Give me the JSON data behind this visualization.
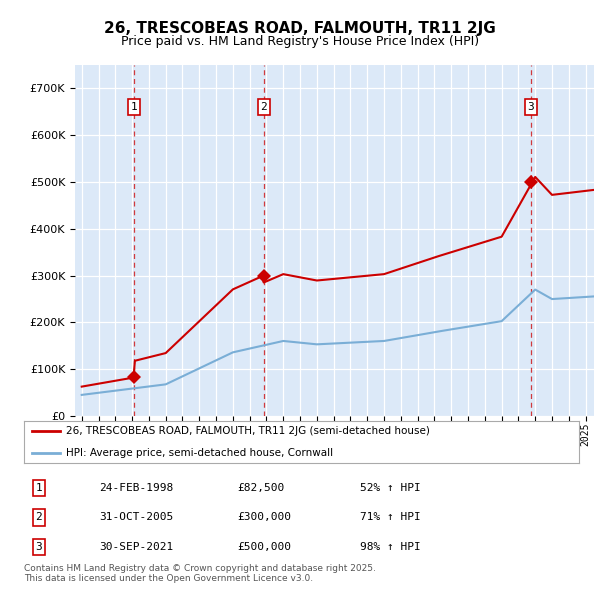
{
  "title": "26, TRESCOBEAS ROAD, FALMOUTH, TR11 2JG",
  "subtitle": "Price paid vs. HM Land Registry's House Price Index (HPI)",
  "red_label": "26, TRESCOBEAS ROAD, FALMOUTH, TR11 2JG (semi-detached house)",
  "blue_label": "HPI: Average price, semi-detached house, Cornwall",
  "footer": "Contains HM Land Registry data © Crown copyright and database right 2025.\nThis data is licensed under the Open Government Licence v3.0.",
  "purchases": [
    {
      "year": 1998.125,
      "price": 82500,
      "label": "1",
      "display": "24-FEB-1998",
      "price_str": "£82,500",
      "hpi_str": "52% ↑ HPI"
    },
    {
      "year": 2005.833,
      "price": 300000,
      "label": "2",
      "display": "31-OCT-2005",
      "price_str": "£300,000",
      "hpi_str": "71% ↑ HPI"
    },
    {
      "year": 2021.75,
      "price": 500000,
      "label": "3",
      "display": "30-SEP-2021",
      "price_str": "£500,000",
      "hpi_str": "98% ↑ HPI"
    }
  ],
  "ylim": [
    0,
    750000
  ],
  "yticks": [
    0,
    100000,
    200000,
    300000,
    400000,
    500000,
    600000,
    700000
  ],
  "plot_bg": "#dce9f8",
  "grid_color": "#ffffff",
  "red_color": "#cc0000",
  "blue_color": "#7aaed6",
  "xstart": 1995,
  "xend": 2025
}
